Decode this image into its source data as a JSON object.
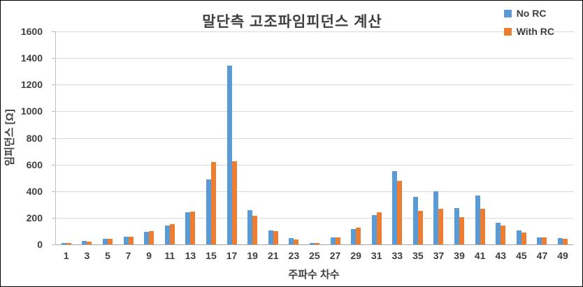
{
  "chart_data": {
    "type": "bar",
    "title": "말단측 고조파임피던스  계산",
    "xlabel": "주파수 차수",
    "ylabel": "임피던스 [Ω]",
    "ylim": [
      0,
      1600
    ],
    "ytick_step": 200,
    "grid": "horizontal",
    "legend_position": "top-right",
    "categories": [
      "1",
      "3",
      "5",
      "7",
      "9",
      "11",
      "13",
      "15",
      "17",
      "19",
      "21",
      "23",
      "25",
      "27",
      "29",
      "31",
      "33",
      "35",
      "37",
      "39",
      "41",
      "43",
      "45",
      "47",
      "49"
    ],
    "series": [
      {
        "name": "No RC",
        "color": "#5b9bd5",
        "values": [
          10,
          25,
          40,
          60,
          95,
          140,
          240,
          490,
          1345,
          255,
          105,
          45,
          10,
          50,
          115,
          220,
          550,
          355,
          400,
          275,
          365,
          165,
          105,
          55,
          45
        ]
      },
      {
        "name": "With RC",
        "color": "#ed7d31",
        "values": [
          10,
          20,
          40,
          60,
          100,
          150,
          245,
          620,
          625,
          215,
          100,
          35,
          10,
          50,
          125,
          240,
          480,
          250,
          270,
          205,
          265,
          140,
          90,
          55,
          40
        ]
      }
    ]
  }
}
